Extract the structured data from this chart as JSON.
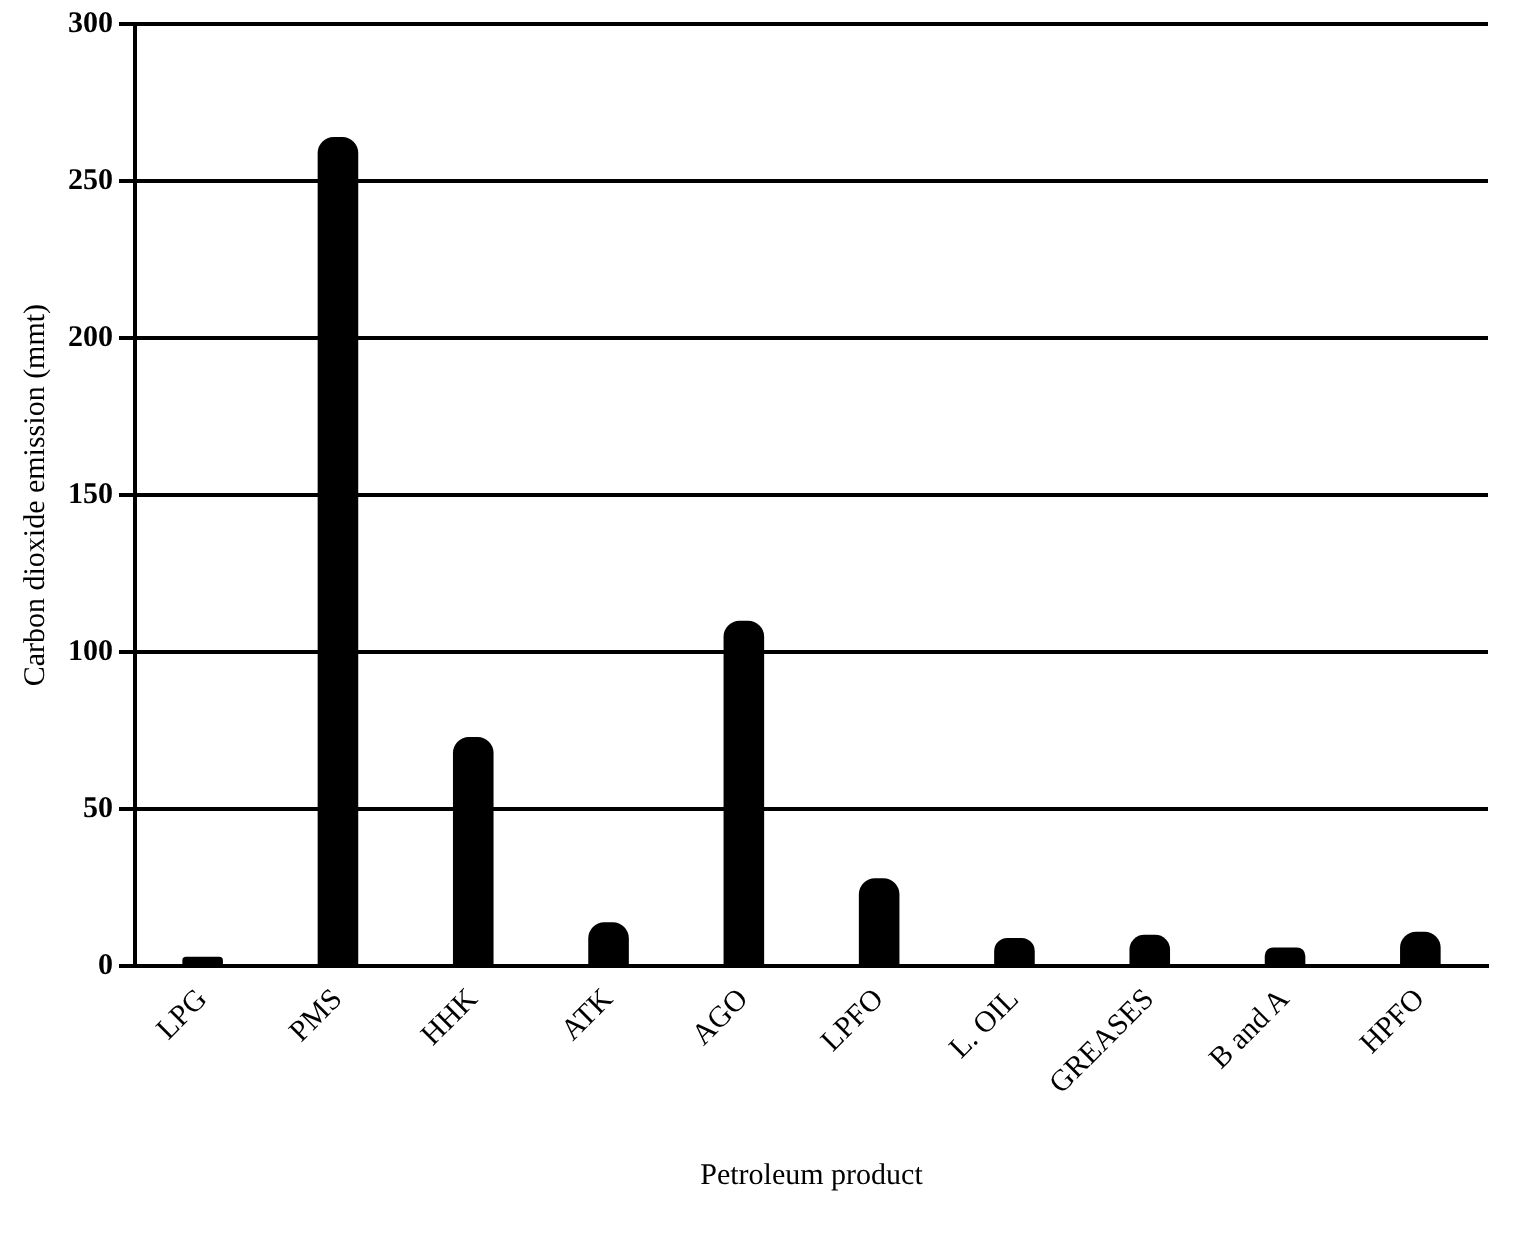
{
  "chart_data": {
    "type": "bar",
    "xlabel": "Petroleum product",
    "ylabel": "Carbon dioxide emission (mmt)",
    "categories": [
      "LPG",
      "PMS",
      "HHK",
      "ATK",
      "AGO",
      "LPFO",
      "L. OIL",
      "GREASES",
      "B and A",
      "HPFO"
    ],
    "values": [
      3,
      264,
      73,
      14,
      110,
      28,
      9,
      10,
      6,
      11
    ],
    "color": "#000000",
    "ylim": [
      0,
      300
    ],
    "yticks": [
      0,
      50,
      100,
      150,
      200,
      250,
      300
    ],
    "grid": "y"
  }
}
